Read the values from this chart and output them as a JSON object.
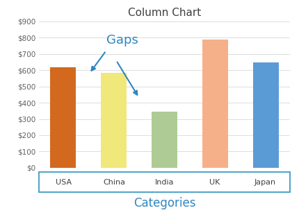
{
  "categories": [
    "USA",
    "China",
    "India",
    "UK",
    "Japan"
  ],
  "values": [
    620,
    585,
    345,
    790,
    648
  ],
  "bar_colors": [
    "#D2691E",
    "#F0E87A",
    "#AECB96",
    "#F5B08A",
    "#5B9BD5"
  ],
  "title": "Column Chart",
  "xlabel": "Categories",
  "ylim": [
    0,
    900
  ],
  "yticks": [
    0,
    100,
    200,
    300,
    400,
    500,
    600,
    700,
    800,
    900
  ],
  "ytick_labels": [
    "$0",
    "$100",
    "$200",
    "$300",
    "$400",
    "$500",
    "$600",
    "$700",
    "$800",
    "$900"
  ],
  "annotation_text": "Gaps",
  "annotation_color": "#2E86C1",
  "title_color": "#404040",
  "xlabel_color": "#2E86C1",
  "grid_color": "#D8D8D8",
  "bar_width": 0.5,
  "xticklabel_box_color": "#4BA3C7"
}
